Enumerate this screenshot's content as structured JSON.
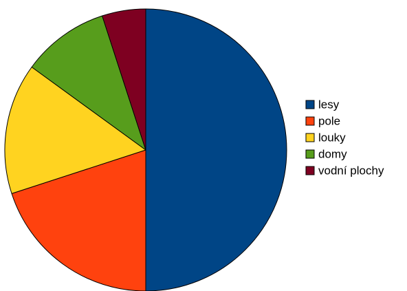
{
  "chart_data": {
    "type": "pie",
    "title": "",
    "start_angle_deg": 0,
    "direction": "clockwise",
    "legend_position": "right",
    "slices": [
      {
        "label": "lesy",
        "value": 50,
        "color": "#004586"
      },
      {
        "label": "pole",
        "value": 20,
        "color": "#ff420e"
      },
      {
        "label": "louky",
        "value": 15,
        "color": "#ffd320"
      },
      {
        "label": "domy",
        "value": 10,
        "color": "#579d1c"
      },
      {
        "label": "vodní plochy",
        "value": 5,
        "color": "#7e0021"
      }
    ]
  }
}
